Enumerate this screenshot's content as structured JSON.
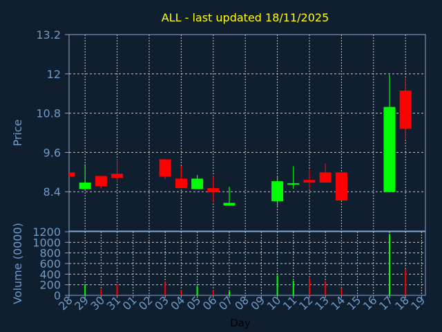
{
  "colors": {
    "background": "#0f1f30",
    "up": "#00ff00",
    "down": "#ff0000",
    "title": "#ffff00",
    "tick": "#6f9cc8",
    "grid": "#c8c8c8",
    "axis": "#8aa8d0"
  },
  "chart_data": [
    {
      "type": "candlestick",
      "title": "ALL - last updated 18/11/2025",
      "xlabel": "",
      "ylabel": "Price",
      "ylim": [
        7.2,
        13.2
      ],
      "yticks": [
        "13.2",
        "12",
        "10.8",
        "9.6",
        "8.4"
      ],
      "grid": true,
      "x_ticks": [
        "28",
        "29",
        "30",
        "31",
        "01",
        "02",
        "03",
        "04",
        "05",
        "06",
        "07",
        "08",
        "09",
        "10",
        "11",
        "12",
        "13",
        "14",
        "15",
        "16",
        "17",
        "18",
        "19"
      ],
      "candles": [
        {
          "day": "28",
          "open": 8.99,
          "high": 8.99,
          "low": 8.86,
          "close": 8.86
        },
        {
          "day": "29",
          "open": 8.48,
          "high": 9.24,
          "low": 8.48,
          "close": 8.68
        },
        {
          "day": "30",
          "open": 8.88,
          "high": 8.88,
          "low": 8.5,
          "close": 8.57
        },
        {
          "day": "31",
          "open": 8.95,
          "high": 9.39,
          "low": 8.67,
          "close": 8.82
        },
        {
          "day": "03",
          "open": 9.39,
          "high": 9.39,
          "low": 8.78,
          "close": 8.86
        },
        {
          "day": "04",
          "open": 8.8,
          "high": 9.18,
          "low": 8.51,
          "close": 8.51
        },
        {
          "day": "05",
          "open": 8.48,
          "high": 8.91,
          "low": 8.48,
          "close": 8.8
        },
        {
          "day": "06",
          "open": 8.51,
          "high": 8.88,
          "low": 8.08,
          "close": 8.38
        },
        {
          "day": "07",
          "open": 7.98,
          "high": 8.55,
          "low": 7.98,
          "close": 8.06
        },
        {
          "day": "10",
          "open": 8.11,
          "high": 8.88,
          "low": 7.96,
          "close": 8.72
        },
        {
          "day": "11",
          "open": 8.62,
          "high": 9.18,
          "low": 8.49,
          "close": 8.66
        },
        {
          "day": "12",
          "open": 8.76,
          "high": 9.09,
          "low": 8.49,
          "close": 8.68
        },
        {
          "day": "13",
          "open": 8.99,
          "high": 9.26,
          "low": 8.68,
          "close": 8.68
        },
        {
          "day": "14",
          "open": 8.99,
          "high": 8.99,
          "low": 8.13,
          "close": 8.13
        },
        {
          "day": "17",
          "open": 8.39,
          "high": 11.98,
          "low": 8.39,
          "close": 10.99
        },
        {
          "day": "18",
          "open": 11.49,
          "high": 11.87,
          "low": 9.98,
          "close": 10.32
        }
      ]
    },
    {
      "type": "bar",
      "xlabel": "Day",
      "ylabel": "Volume (0000)",
      "ylim": [
        0,
        1200
      ],
      "yticks": [
        "0",
        "200",
        "400",
        "600",
        "800",
        "1000",
        "1200"
      ],
      "grid": true,
      "bars": [
        {
          "day": "29",
          "value": 208,
          "direction": "up"
        },
        {
          "day": "30",
          "value": 117,
          "direction": "down"
        },
        {
          "day": "31",
          "value": 212,
          "direction": "down"
        },
        {
          "day": "03",
          "value": 255,
          "direction": "down"
        },
        {
          "day": "04",
          "value": 104,
          "direction": "down"
        },
        {
          "day": "05",
          "value": 173,
          "direction": "up"
        },
        {
          "day": "06",
          "value": 104,
          "direction": "down"
        },
        {
          "day": "07",
          "value": 73,
          "direction": "up"
        },
        {
          "day": "10",
          "value": 377,
          "direction": "up"
        },
        {
          "day": "11",
          "value": 277,
          "direction": "up"
        },
        {
          "day": "12",
          "value": 325,
          "direction": "down"
        },
        {
          "day": "13",
          "value": 268,
          "direction": "down"
        },
        {
          "day": "14",
          "value": 134,
          "direction": "down"
        },
        {
          "day": "17",
          "value": 1157,
          "direction": "up"
        },
        {
          "day": "18",
          "value": 498,
          "direction": "down"
        }
      ]
    }
  ]
}
